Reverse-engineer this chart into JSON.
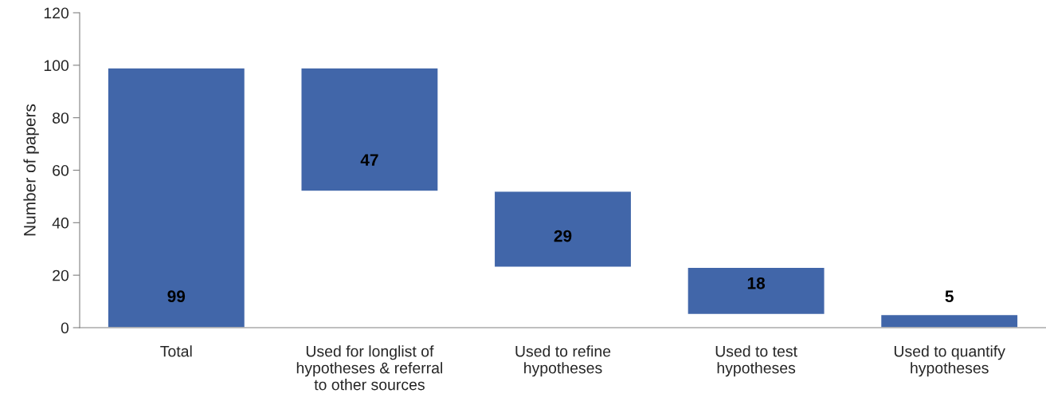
{
  "chart_data": {
    "type": "bar",
    "ylabel": "Number of papers",
    "categories": [
      "Total",
      "Used for longlist of\nhypotheses & referral\nto other sources",
      "Used to refine\nhypotheses",
      "Used to test\nhypotheses",
      "Used to quantify\nhypotheses"
    ],
    "values": [
      99,
      47,
      29,
      18,
      5
    ],
    "base": [
      0,
      52,
      23,
      5,
      0
    ],
    "color": "#4166a9",
    "ylim": [
      0,
      120
    ],
    "yticks": [
      0,
      20,
      40,
      60,
      80,
      100,
      120
    ],
    "data_labels": true,
    "grid": false,
    "legend": false
  }
}
